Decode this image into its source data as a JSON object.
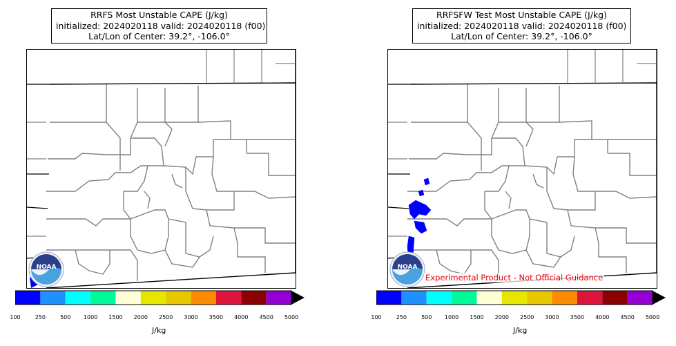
{
  "panels": [
    {
      "id": "rrfs",
      "title_lines": [
        "RRFS Most Unstable CAPE (J/kg)",
        "initialized: 2024020118 valid: 2024020118 (f00)",
        "Lat/Lon of Center: 39.2°, -106.0°"
      ],
      "has_cape_blobs": false,
      "disclaimer": ""
    },
    {
      "id": "rrfsfw",
      "title_lines": [
        "RRFSFW Test Most Unstable CAPE (J/kg)",
        "initialized: 2024020118 valid: 2024020118 (f00)",
        "Lat/Lon of Center: 39.2°, -106.0°"
      ],
      "has_cape_blobs": true,
      "disclaimer": "Experimental Product - Not Official Guidance"
    }
  ],
  "colorbar": {
    "ticks": [
      "100",
      "250",
      "500",
      "1000",
      "1500",
      "2000",
      "2500",
      "3000",
      "3500",
      "4000",
      "4500",
      "5000"
    ],
    "colors": [
      "#0000ff",
      "#1e90ff",
      "#00ffff",
      "#00fa9a",
      "#ffffd7",
      "#e6e600",
      "#e6c800",
      "#ff8c00",
      "#dc143c",
      "#8b0000",
      "#9400d3"
    ],
    "extend_color": "#000000",
    "label": "J/kg"
  },
  "logo": {
    "name": "noaa-logo",
    "text": "NOAA"
  },
  "state_line_color": "#000000",
  "county_line_color": "#808080"
}
